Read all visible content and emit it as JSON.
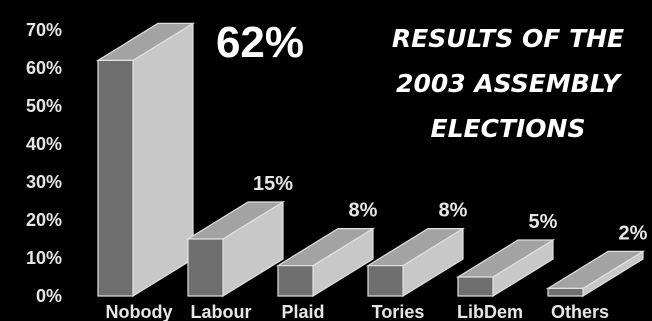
{
  "chart_data": {
    "type": "bar",
    "title_lines": [
      "RESULTS OF THE",
      "2003 ASSEMBLY",
      "ELECTIONS"
    ],
    "categories": [
      "Nobody",
      "Labour",
      "Plaid",
      "Tories",
      "LibDem",
      "Others"
    ],
    "values": [
      62,
      15,
      8,
      8,
      5,
      2
    ],
    "value_labels": [
      "62%",
      "15%",
      "8%",
      "8%",
      "5%",
      "2%"
    ],
    "y_ticks": [
      "0%",
      "10%",
      "20%",
      "30%",
      "40%",
      "50%",
      "60%",
      "70%"
    ],
    "ylim": [
      0,
      70
    ],
    "grid": false,
    "colors": {
      "background": "#000000",
      "bar_front": "#6f6f6f",
      "bar_side": "#c8c8c8",
      "bar_top": "#a3a3a3",
      "bar_edge": "#e0e0e0",
      "text": "#e6e6e6"
    }
  }
}
